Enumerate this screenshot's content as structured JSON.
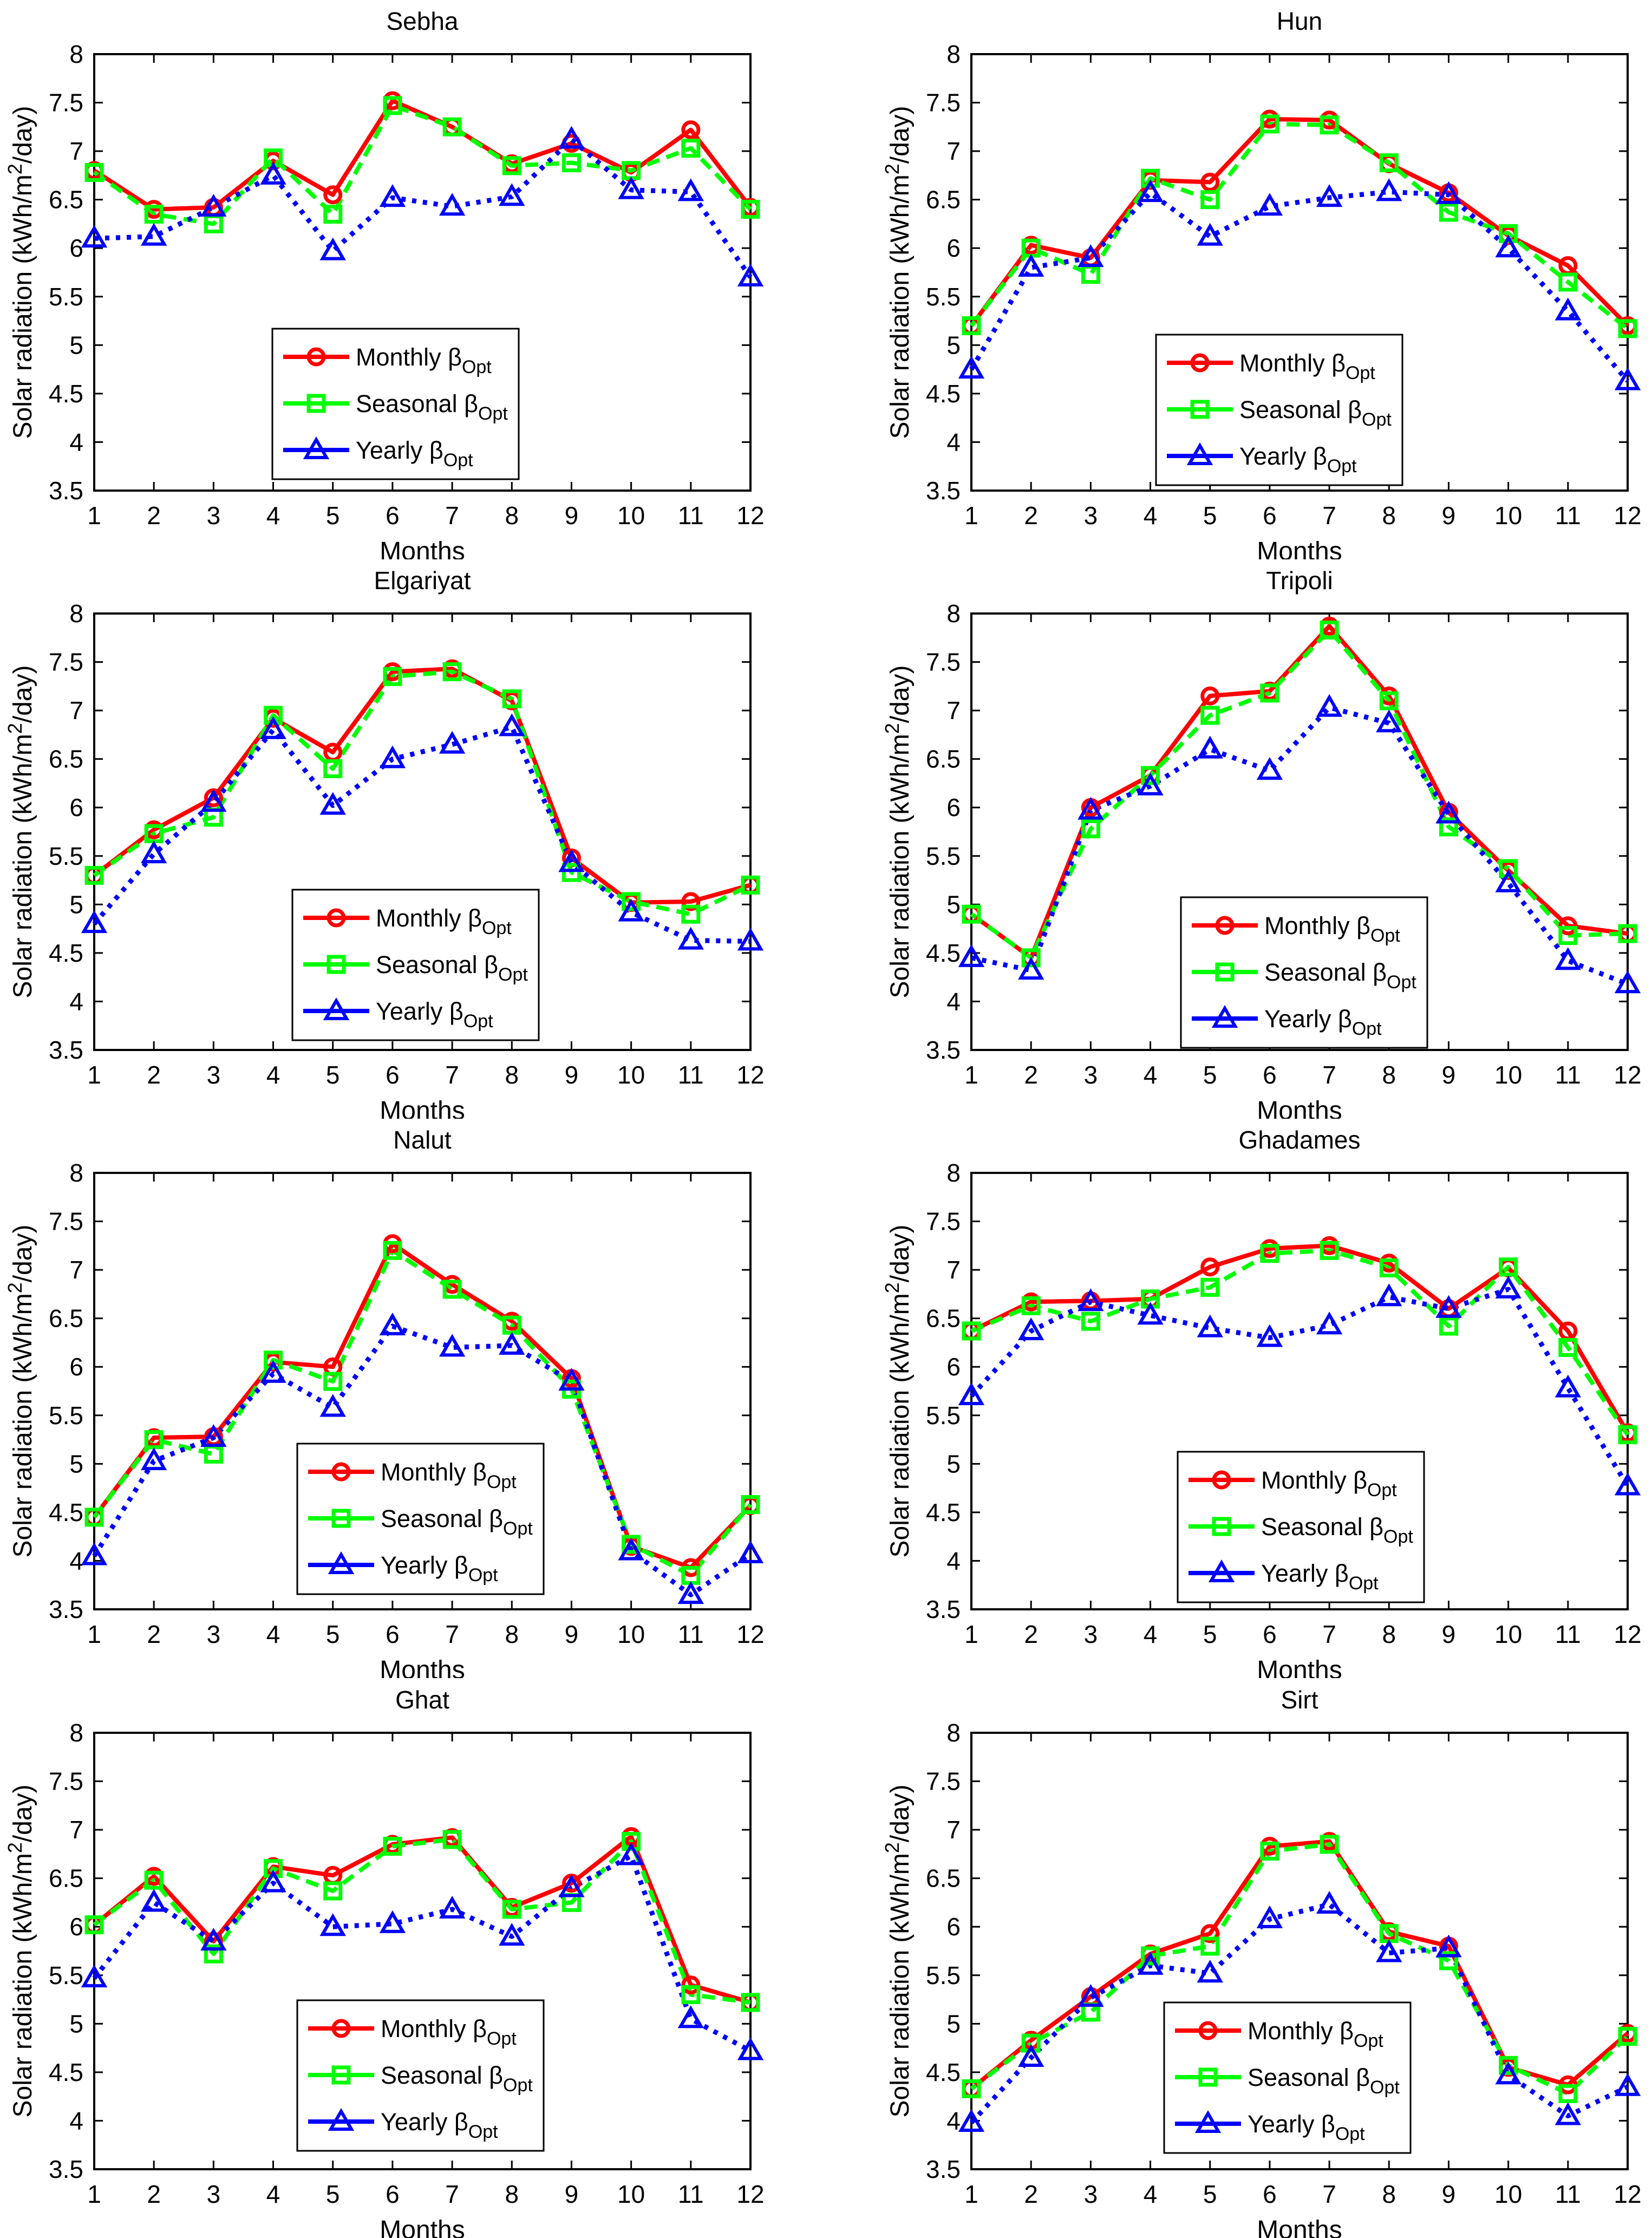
{
  "figure": {
    "xlabel": "Months",
    "ylabel_prefix": "Solar radiation (kWh/m",
    "ylabel_superscript": "2",
    "ylabel_suffix": "/day)",
    "x_ticks": [
      "1",
      "2",
      "3",
      "4",
      "5",
      "6",
      "7",
      "8",
      "9",
      "10",
      "11",
      "12"
    ],
    "y_ticks": [
      "3.5",
      "4",
      "4.5",
      "5",
      "5.5",
      "6",
      "6.5",
      "7",
      "7.5",
      "8"
    ],
    "xlim": [
      1,
      12
    ],
    "ylim": [
      3.5,
      8
    ],
    "grid": "off",
    "legend_position": "inside-lower-middle",
    "colors": {
      "monthly": "#ff0000",
      "seasonal": "#00ff00",
      "yearly": "#0000ff",
      "axis": "#000000",
      "background": "#ffffff"
    },
    "legend": [
      {
        "name": "Monthly",
        "symbol": "β",
        "subscript": "Opt",
        "series": "monthly",
        "marker": "circle",
        "line": "solid"
      },
      {
        "name": "Seasonal",
        "symbol": "β",
        "subscript": "Opt",
        "series": "seasonal",
        "marker": "square",
        "line": "dashed"
      },
      {
        "name": "Yearly",
        "symbol": "β",
        "subscript": "Opt",
        "series": "yearly",
        "marker": "triangle",
        "line": "dotted"
      }
    ]
  },
  "chart_data": [
    {
      "type": "line",
      "title": "Sebha",
      "xlabel": "Months",
      "ylabel": "Solar radiation (kWh/m2/day)",
      "x": [
        1,
        2,
        3,
        4,
        5,
        6,
        7,
        8,
        9,
        10,
        11,
        12
      ],
      "ylim": [
        3.5,
        8
      ],
      "series": [
        {
          "name": "Monthly βOpt",
          "key": "monthly",
          "values": [
            6.8,
            6.4,
            6.42,
            6.9,
            6.55,
            7.52,
            7.25,
            6.87,
            7.08,
            6.78,
            7.22,
            6.42
          ]
        },
        {
          "name": "Seasonal βOpt",
          "key": "seasonal",
          "values": [
            6.78,
            6.35,
            6.25,
            6.93,
            6.35,
            7.47,
            7.25,
            6.85,
            6.88,
            6.8,
            7.03,
            6.4
          ]
        },
        {
          "name": "Yearly βOpt",
          "key": "yearly",
          "values": [
            6.1,
            6.12,
            6.42,
            6.75,
            5.97,
            6.52,
            6.43,
            6.53,
            7.12,
            6.6,
            6.58,
            5.7
          ]
        }
      ]
    },
    {
      "type": "line",
      "title": "Hun",
      "xlabel": "Months",
      "ylabel": "Solar radiation (kWh/m2/day)",
      "x": [
        1,
        2,
        3,
        4,
        5,
        6,
        7,
        8,
        9,
        10,
        11,
        12
      ],
      "ylim": [
        3.5,
        8
      ],
      "series": [
        {
          "name": "Monthly βOpt",
          "key": "monthly",
          "values": [
            5.2,
            6.03,
            5.9,
            6.7,
            6.68,
            7.33,
            7.32,
            6.87,
            6.57,
            6.13,
            5.82,
            5.2
          ]
        },
        {
          "name": "Seasonal βOpt",
          "key": "seasonal",
          "values": [
            5.2,
            6.0,
            5.73,
            6.72,
            6.5,
            7.28,
            7.27,
            6.88,
            6.37,
            6.15,
            5.65,
            5.17
          ]
        },
        {
          "name": "Yearly βOpt",
          "key": "yearly",
          "values": [
            4.75,
            5.8,
            5.9,
            6.57,
            6.12,
            6.43,
            6.52,
            6.58,
            6.55,
            6.0,
            5.35,
            4.63
          ]
        }
      ]
    },
    {
      "type": "line",
      "title": "Elgariyat",
      "xlabel": "Months",
      "ylabel": "Solar radiation (kWh/m2/day)",
      "x": [
        1,
        2,
        3,
        4,
        5,
        6,
        7,
        8,
        9,
        10,
        11,
        12
      ],
      "ylim": [
        3.5,
        8
      ],
      "series": [
        {
          "name": "Monthly βOpt",
          "key": "monthly",
          "values": [
            5.3,
            5.77,
            6.1,
            6.92,
            6.57,
            7.4,
            7.43,
            7.1,
            5.48,
            5.02,
            5.03,
            5.2
          ]
        },
        {
          "name": "Seasonal βOpt",
          "key": "seasonal",
          "values": [
            5.3,
            5.73,
            5.9,
            6.95,
            6.4,
            7.35,
            7.4,
            7.12,
            5.33,
            5.03,
            4.9,
            5.2
          ]
        },
        {
          "name": "Yearly βOpt",
          "key": "yearly",
          "values": [
            4.8,
            5.52,
            6.05,
            6.8,
            6.02,
            6.5,
            6.65,
            6.83,
            5.43,
            4.92,
            4.63,
            4.62
          ]
        }
      ]
    },
    {
      "type": "line",
      "title": "Tripoli",
      "xlabel": "Months",
      "ylabel": "Solar radiation (kWh/m2/day)",
      "x": [
        1,
        2,
        3,
        4,
        5,
        6,
        7,
        8,
        9,
        10,
        11,
        12
      ],
      "ylim": [
        3.5,
        8
      ],
      "series": [
        {
          "name": "Monthly βOpt",
          "key": "monthly",
          "values": [
            4.9,
            4.45,
            6.0,
            6.33,
            7.15,
            7.2,
            7.87,
            7.15,
            5.95,
            5.35,
            4.78,
            4.7
          ]
        },
        {
          "name": "Seasonal βOpt",
          "key": "seasonal",
          "values": [
            4.9,
            4.45,
            5.78,
            6.33,
            6.95,
            7.18,
            7.83,
            7.1,
            5.8,
            5.37,
            4.68,
            4.7
          ]
        },
        {
          "name": "Yearly βOpt",
          "key": "yearly",
          "values": [
            4.45,
            4.32,
            5.97,
            6.22,
            6.6,
            6.38,
            7.03,
            6.87,
            5.93,
            5.22,
            4.42,
            4.18
          ]
        }
      ]
    },
    {
      "type": "line",
      "title": "Nalut",
      "xlabel": "Months",
      "ylabel": "Solar radiation (kWh/m2/day)",
      "x": [
        1,
        2,
        3,
        4,
        5,
        6,
        7,
        8,
        9,
        10,
        11,
        12
      ],
      "ylim": [
        3.5,
        8
      ],
      "series": [
        {
          "name": "Monthly βOpt",
          "key": "monthly",
          "values": [
            4.45,
            5.27,
            5.28,
            6.05,
            6.0,
            7.27,
            6.85,
            6.47,
            5.88,
            4.15,
            3.93,
            4.57
          ]
        },
        {
          "name": "Seasonal βOpt",
          "key": "seasonal",
          "values": [
            4.45,
            5.25,
            5.1,
            6.07,
            5.85,
            7.2,
            6.8,
            6.43,
            5.77,
            4.17,
            3.85,
            4.58
          ]
        },
        {
          "name": "Yearly βOpt",
          "key": "yearly",
          "values": [
            4.05,
            5.03,
            5.27,
            5.93,
            5.58,
            6.42,
            6.2,
            6.22,
            5.85,
            4.1,
            3.65,
            4.07
          ]
        }
      ]
    },
    {
      "type": "line",
      "title": "Ghadames",
      "xlabel": "Months",
      "ylabel": "Solar radiation (kWh/m2/day)",
      "x": [
        1,
        2,
        3,
        4,
        5,
        6,
        7,
        8,
        9,
        10,
        11,
        12
      ],
      "ylim": [
        3.5,
        8
      ],
      "series": [
        {
          "name": "Monthly βOpt",
          "key": "monthly",
          "values": [
            6.37,
            6.67,
            6.68,
            6.7,
            7.03,
            7.22,
            7.25,
            7.07,
            6.6,
            7.02,
            6.37,
            5.32
          ]
        },
        {
          "name": "Seasonal βOpt",
          "key": "seasonal",
          "values": [
            6.37,
            6.63,
            6.47,
            6.7,
            6.82,
            7.17,
            7.2,
            7.02,
            6.42,
            7.03,
            6.2,
            5.3
          ]
        },
        {
          "name": "Yearly βOpt",
          "key": "yearly",
          "values": [
            5.7,
            6.37,
            6.67,
            6.53,
            6.4,
            6.3,
            6.43,
            6.72,
            6.6,
            6.8,
            5.78,
            4.77
          ]
        }
      ]
    },
    {
      "type": "line",
      "title": "Ghat",
      "xlabel": "Months",
      "ylabel": "Solar radiation (kWh/m2/day)",
      "x": [
        1,
        2,
        3,
        4,
        5,
        6,
        7,
        8,
        9,
        10,
        11,
        12
      ],
      "ylim": [
        3.5,
        8
      ],
      "series": [
        {
          "name": "Monthly βOpt",
          "key": "monthly",
          "values": [
            6.02,
            6.52,
            5.85,
            6.62,
            6.53,
            6.85,
            6.92,
            6.2,
            6.45,
            6.93,
            5.4,
            5.22
          ]
        },
        {
          "name": "Seasonal βOpt",
          "key": "seasonal",
          "values": [
            6.02,
            6.48,
            5.72,
            6.6,
            6.37,
            6.83,
            6.9,
            6.18,
            6.25,
            6.88,
            5.3,
            5.22
          ]
        },
        {
          "name": "Yearly βOpt",
          "key": "yearly",
          "values": [
            5.47,
            6.25,
            5.85,
            6.45,
            6.0,
            6.03,
            6.18,
            5.9,
            6.4,
            6.73,
            5.05,
            4.72
          ]
        }
      ]
    },
    {
      "type": "line",
      "title": "Sirt",
      "xlabel": "Months",
      "ylabel": "Solar radiation (kWh/m2/day)",
      "x": [
        1,
        2,
        3,
        4,
        5,
        6,
        7,
        8,
        9,
        10,
        11,
        12
      ],
      "ylim": [
        3.5,
        8
      ],
      "series": [
        {
          "name": "Monthly βOpt",
          "key": "monthly",
          "values": [
            4.33,
            4.83,
            5.28,
            5.72,
            5.93,
            6.83,
            6.88,
            5.95,
            5.8,
            4.55,
            4.37,
            4.9
          ]
        },
        {
          "name": "Seasonal βOpt",
          "key": "seasonal",
          "values": [
            4.33,
            4.8,
            5.12,
            5.7,
            5.8,
            6.78,
            6.85,
            5.93,
            5.65,
            4.57,
            4.28,
            4.87
          ]
        },
        {
          "name": "Yearly βOpt",
          "key": "yearly",
          "values": [
            3.98,
            4.65,
            5.27,
            5.6,
            5.52,
            6.08,
            6.23,
            5.73,
            5.78,
            4.47,
            4.05,
            4.35
          ]
        }
      ]
    }
  ]
}
